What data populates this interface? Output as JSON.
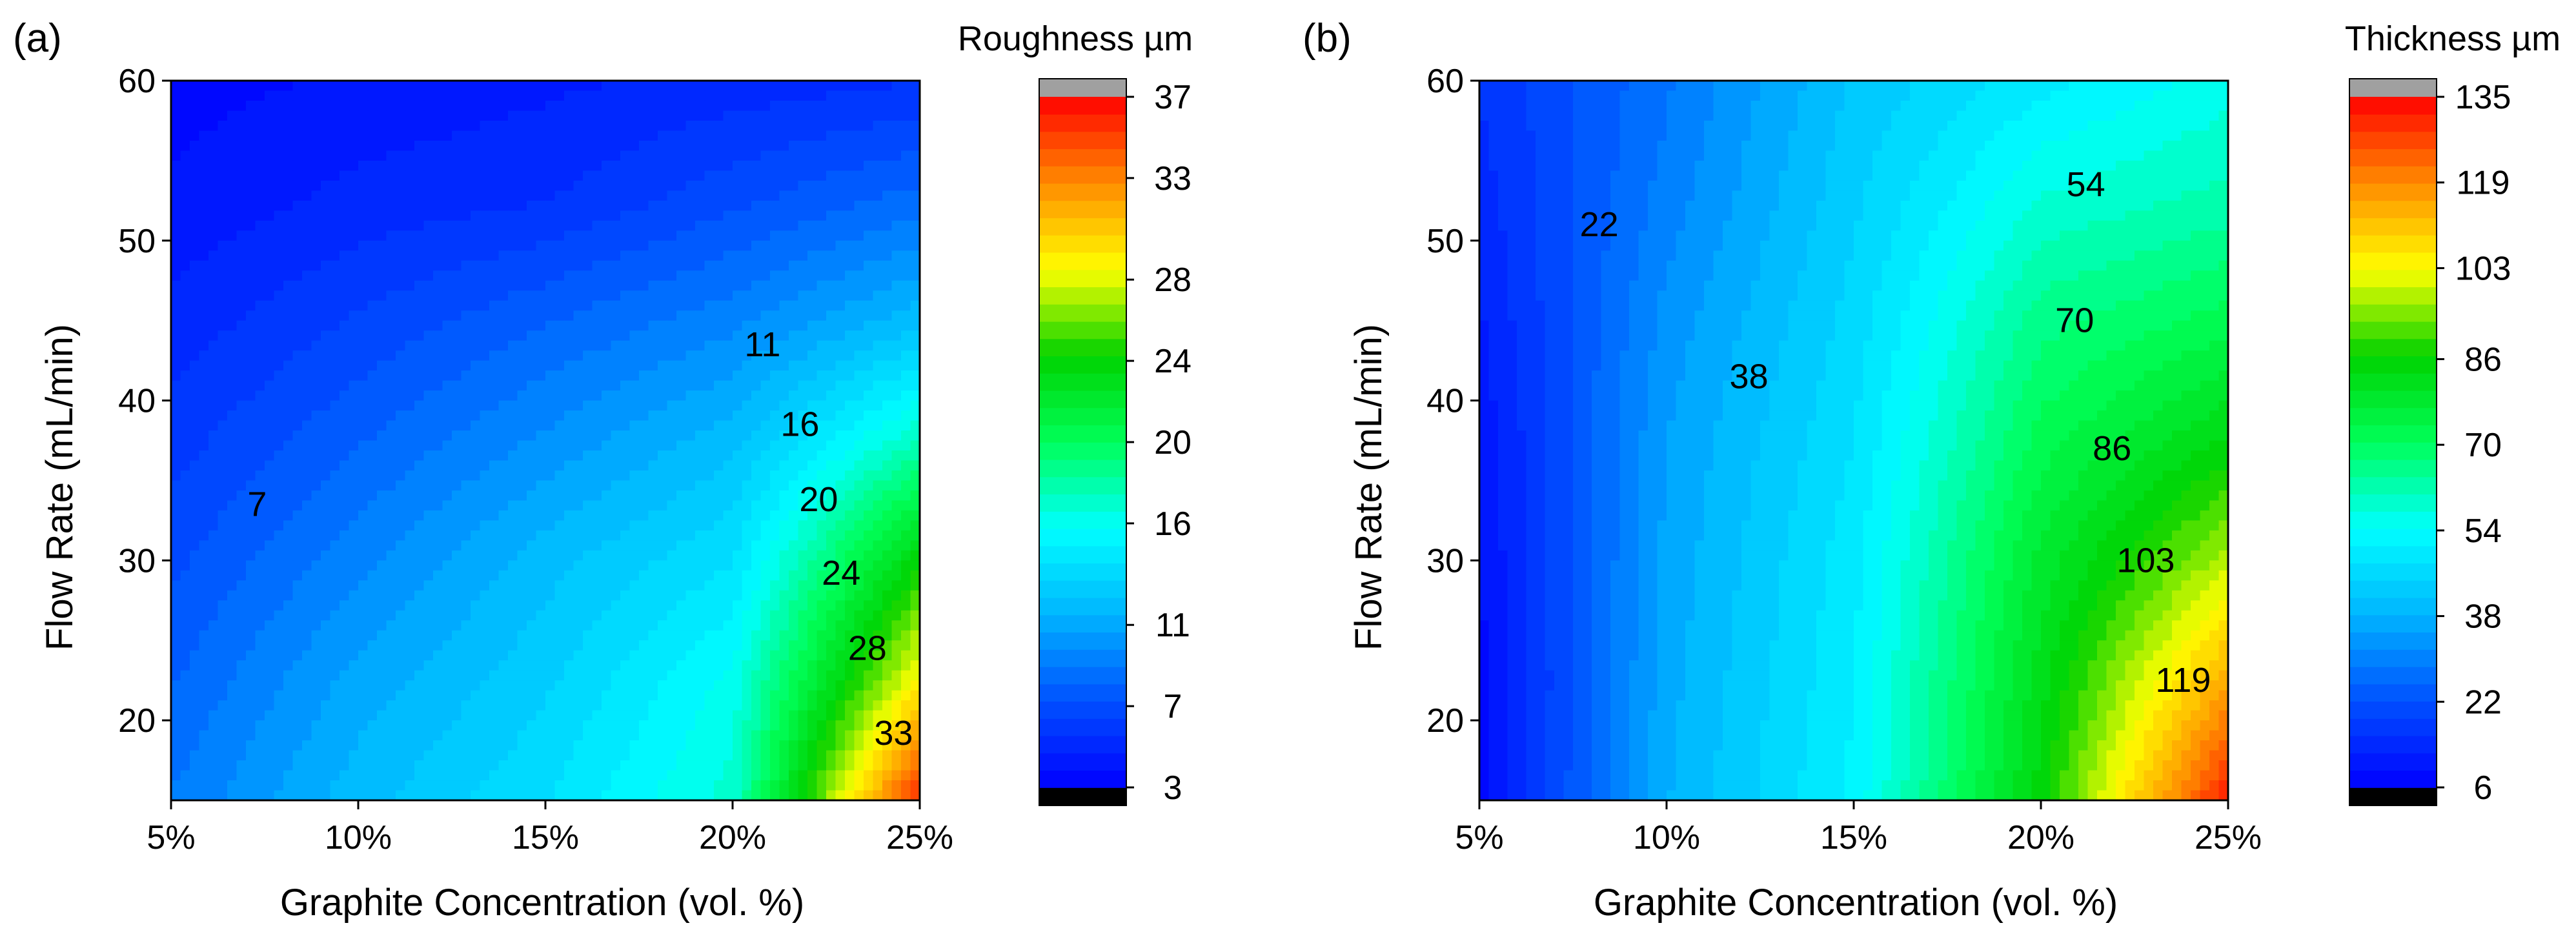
{
  "colors": {
    "scale": [
      "#0000ff",
      "#0050ff",
      "#00b4ff",
      "#00ffff",
      "#00ff5a",
      "#00d200",
      "#ffff00",
      "#ff8c00",
      "#ff0000"
    ],
    "over": "#a0a0a0",
    "under": "#000000",
    "contour_line": "#000000"
  },
  "chart_data": [
    {
      "type": "contour",
      "panel_label": "(a)",
      "xlabel": "Graphite Concentration (vol. %)",
      "ylabel": "Flow Rate (mL/min)",
      "xlim": [
        5,
        25
      ],
      "ylim": [
        15,
        60
      ],
      "x_tick_values": [
        5,
        10,
        15,
        20,
        25
      ],
      "x_tick_labels": [
        "5%",
        "10%",
        "15%",
        "20%",
        "25%"
      ],
      "y_tick_values": [
        20,
        30,
        40,
        50,
        60
      ],
      "y_tick_labels": [
        "20",
        "30",
        "40",
        "50",
        "60"
      ],
      "colorbar": {
        "title": "Roughness µm",
        "range": [
          3,
          37
        ],
        "tick_values": [
          3,
          7,
          11,
          16,
          20,
          24,
          28,
          33,
          37
        ],
        "tick_labels": [
          "3",
          "7",
          "11",
          "16",
          "20",
          "24",
          "28",
          "33",
          "37"
        ],
        "levels": 40
      },
      "contour_levels": [
        {
          "label": "7",
          "x": 7.3,
          "y": 33.5
        },
        {
          "label": "11",
          "x": 20.8,
          "y": 43.5
        },
        {
          "label": "16",
          "x": 21.8,
          "y": 38.5
        },
        {
          "label": "20",
          "x": 22.3,
          "y": 33.8
        },
        {
          "label": "24",
          "x": 22.9,
          "y": 29.2
        },
        {
          "label": "28",
          "x": 23.6,
          "y": 24.5
        },
        {
          "label": "33",
          "x": 24.3,
          "y": 19.2
        }
      ],
      "grid_x": [
        5,
        10,
        15,
        20,
        25
      ],
      "grid_y": [
        15,
        22.5,
        30,
        37.5,
        45,
        52.5,
        60
      ],
      "values": [
        [
          9,
          12,
          14,
          17,
          36
        ],
        [
          8,
          11,
          13,
          16,
          29
        ],
        [
          7,
          9.5,
          12,
          14,
          24
        ],
        [
          6,
          8,
          10,
          12,
          17.5
        ],
        [
          5,
          6.5,
          8,
          9.5,
          12
        ],
        [
          4,
          5,
          5.5,
          7,
          8.5
        ],
        [
          3.5,
          4,
          4.5,
          5,
          5.5
        ]
      ]
    },
    {
      "type": "contour",
      "panel_label": "(b)",
      "xlabel": "Graphite Concentration (vol. %)",
      "ylabel": "Flow Rate (mL/min)",
      "xlim": [
        5,
        25
      ],
      "ylim": [
        15,
        60
      ],
      "x_tick_values": [
        5,
        10,
        15,
        20,
        25
      ],
      "x_tick_labels": [
        "5%",
        "10%",
        "15%",
        "20%",
        "25%"
      ],
      "y_tick_values": [
        20,
        30,
        40,
        50,
        60
      ],
      "y_tick_labels": [
        "20",
        "30",
        "40",
        "50",
        "60"
      ],
      "colorbar": {
        "title": "Thickness µm",
        "range": [
          6,
          135
        ],
        "tick_values": [
          6,
          22,
          38,
          54,
          70,
          86,
          103,
          119,
          135
        ],
        "tick_labels": [
          "6",
          "22",
          "38",
          "54",
          "70",
          "86",
          "103",
          "119",
          "135"
        ],
        "levels": 40
      },
      "contour_levels": [
        {
          "label": "22",
          "x": 8.2,
          "y": 51
        },
        {
          "label": "38",
          "x": 12.2,
          "y": 41.5
        },
        {
          "label": "54",
          "x": 21.2,
          "y": 53.5
        },
        {
          "label": "70",
          "x": 20.9,
          "y": 45
        },
        {
          "label": "86",
          "x": 21.9,
          "y": 37
        },
        {
          "label": "103",
          "x": 22.8,
          "y": 30
        },
        {
          "label": "119",
          "x": 23.8,
          "y": 22.5
        }
      ],
      "grid_x": [
        5,
        10,
        15,
        20,
        25
      ],
      "grid_y": [
        15,
        22.5,
        30,
        37.5,
        45,
        52.5,
        60
      ],
      "values": [
        [
          8,
          38,
          52,
          85,
          132
        ],
        [
          8,
          37,
          51,
          82,
          115
        ],
        [
          9,
          36,
          50,
          78,
          98
        ],
        [
          10,
          35,
          48,
          72,
          84
        ],
        [
          12,
          33,
          46,
          66,
          72
        ],
        [
          14,
          30,
          44,
          58,
          62
        ],
        [
          16,
          28,
          42,
          50,
          56
        ]
      ]
    }
  ]
}
